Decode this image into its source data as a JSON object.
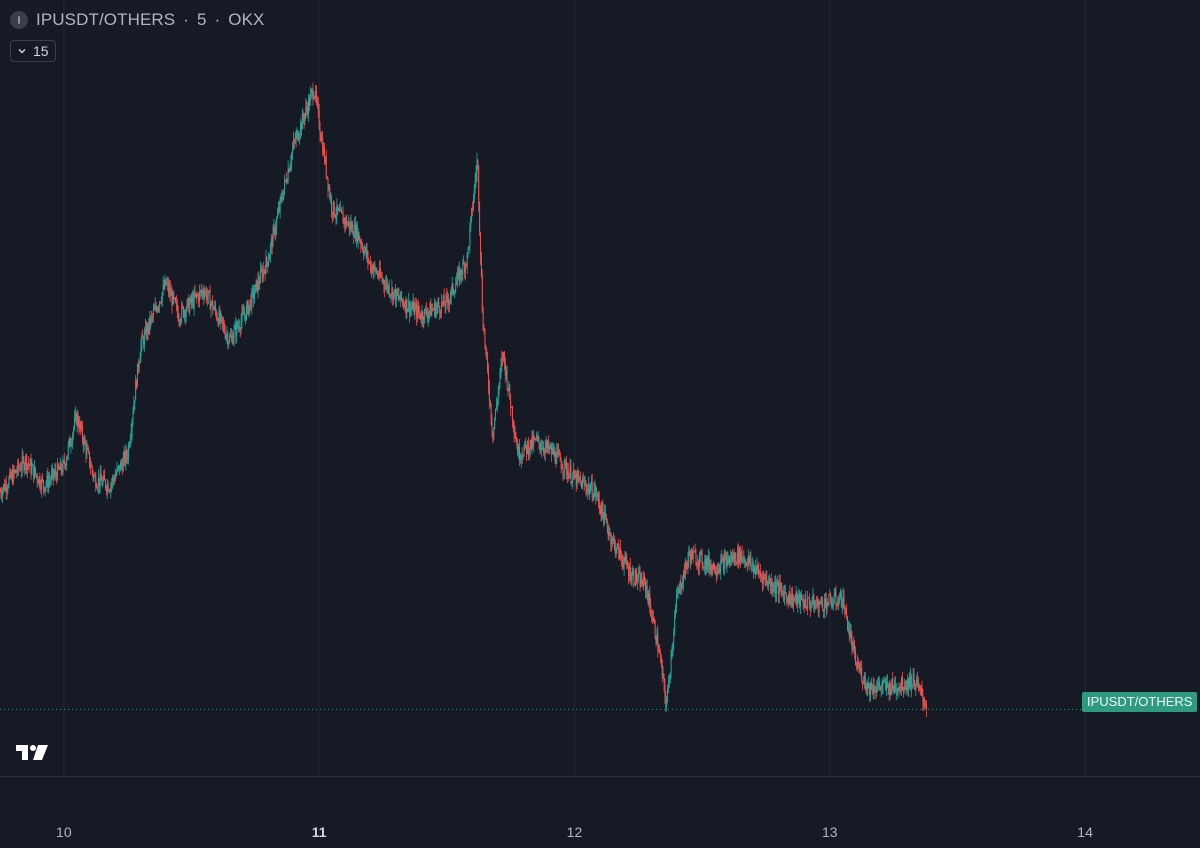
{
  "header": {
    "symbol": "IPUSDT/OTHERS",
    "separator1": "·",
    "interval": "5",
    "separator2": "·",
    "exchange": "OKX"
  },
  "interval_selector": {
    "value": "15"
  },
  "price_label": "IPUSDT/OTHERS",
  "colors": {
    "background": "#161a25",
    "up": "#26a69a",
    "down": "#ef5350",
    "grid": "#232733",
    "last_price_line": "#2f9a7d"
  },
  "chart_data": {
    "type": "candlestick",
    "x_axis": {
      "ticks": [
        "10",
        "11",
        "12",
        "13",
        "14"
      ],
      "bold_tick": "11",
      "range_days": [
        9.75,
        14.45
      ]
    },
    "y_axis": {
      "visible": false,
      "range": [
        0,
        100
      ]
    },
    "grid": true,
    "series": [
      {
        "name": "IPUSDT/OTHERS",
        "path": [
          [
            9.75,
            35
          ],
          [
            9.85,
            40
          ],
          [
            9.92,
            36
          ],
          [
            10.0,
            39
          ],
          [
            10.05,
            47
          ],
          [
            10.12,
            37
          ],
          [
            10.18,
            36
          ],
          [
            10.25,
            41
          ],
          [
            10.3,
            58
          ],
          [
            10.4,
            68
          ],
          [
            10.45,
            63
          ],
          [
            10.55,
            67
          ],
          [
            10.65,
            59
          ],
          [
            10.72,
            64
          ],
          [
            10.8,
            72
          ],
          [
            10.9,
            90
          ],
          [
            10.98,
            99
          ],
          [
            11.05,
            80
          ],
          [
            11.15,
            76
          ],
          [
            11.2,
            71
          ],
          [
            11.3,
            66
          ],
          [
            11.4,
            63
          ],
          [
            11.5,
            65
          ],
          [
            11.58,
            72
          ],
          [
            11.62,
            88
          ],
          [
            11.64,
            63
          ],
          [
            11.68,
            44
          ],
          [
            11.72,
            57
          ],
          [
            11.78,
            41
          ],
          [
            11.85,
            43
          ],
          [
            11.92,
            41
          ],
          [
            12.0,
            37
          ],
          [
            12.08,
            35
          ],
          [
            12.15,
            27
          ],
          [
            12.22,
            22
          ],
          [
            12.28,
            20
          ],
          [
            12.33,
            10
          ],
          [
            12.36,
            1
          ],
          [
            12.4,
            18
          ],
          [
            12.45,
            25
          ],
          [
            12.55,
            23
          ],
          [
            12.65,
            25
          ],
          [
            12.75,
            21
          ],
          [
            12.85,
            18
          ],
          [
            12.95,
            17
          ],
          [
            13.05,
            18
          ],
          [
            13.1,
            8
          ],
          [
            13.15,
            4
          ],
          [
            13.25,
            4
          ],
          [
            13.33,
            5
          ],
          [
            13.38,
            1
          ]
        ]
      }
    ],
    "last_price": 0.5
  }
}
